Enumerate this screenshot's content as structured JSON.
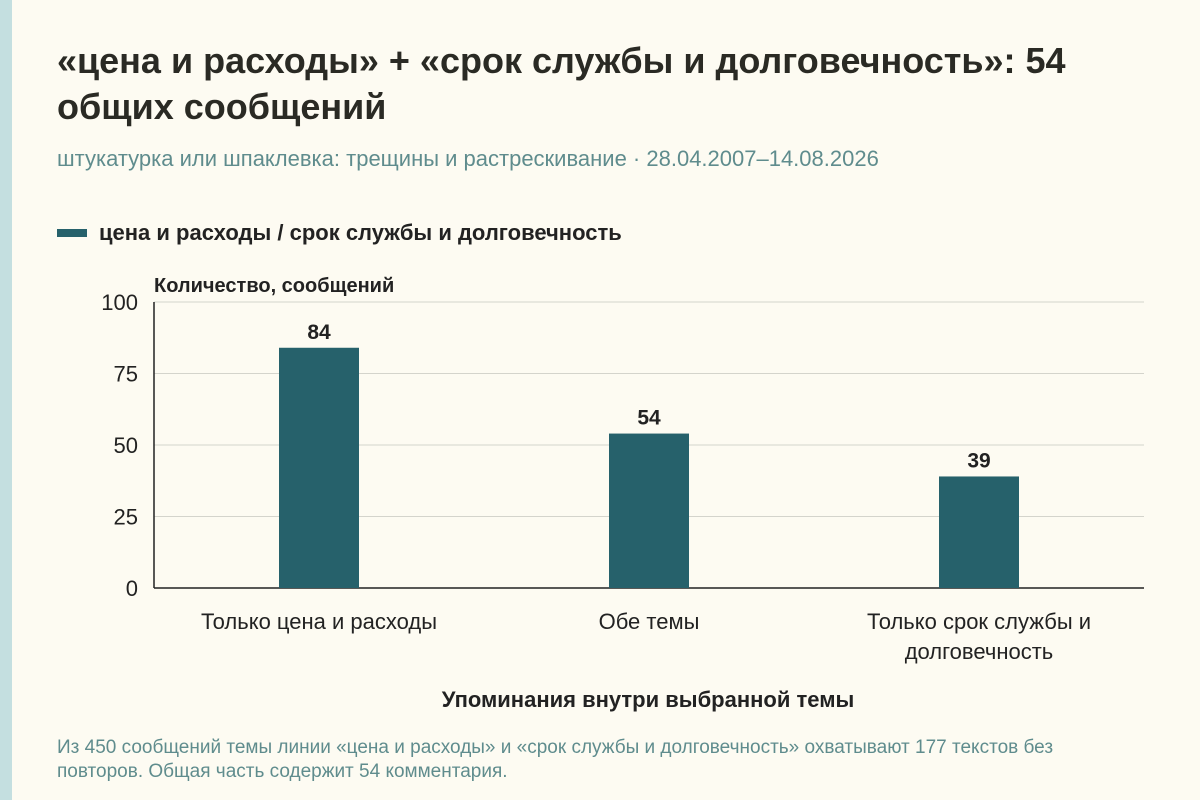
{
  "header": {
    "title": "«цена и расходы» + «срок службы и долговечность»: 54 общих сообщений",
    "subtitle": "штукатурка или шпаклевка: трещины и растрескивание · 28.04.2007–14.08.2026"
  },
  "legend": {
    "label": "цена и расходы / срок службы и долговечность"
  },
  "colors": {
    "bar": "#26616b",
    "accent_strip": "#c4dfe0",
    "subtitle_text": "#5f8c8d",
    "background": "#fdfbf2"
  },
  "chart_data": {
    "type": "bar",
    "categories": [
      "Только цена и расходы",
      "Обе темы",
      "Только срок службы и долговечность"
    ],
    "values": [
      84,
      54,
      39
    ],
    "data_labels": [
      "84",
      "54",
      "39"
    ],
    "ylabel": "Количество, сообщений",
    "xlabel": "Упоминания внутри выбранной темы",
    "ylim": [
      0,
      100
    ],
    "yticks": [
      0,
      25,
      50,
      75,
      100
    ],
    "grid": true,
    "legend_position": "top-left"
  },
  "footnote": "Из 450 сообщений темы линии «цена и расходы» и «срок службы и долговечность» охватывают 177 текстов без повторов. Общая часть содержит 54 комментария."
}
